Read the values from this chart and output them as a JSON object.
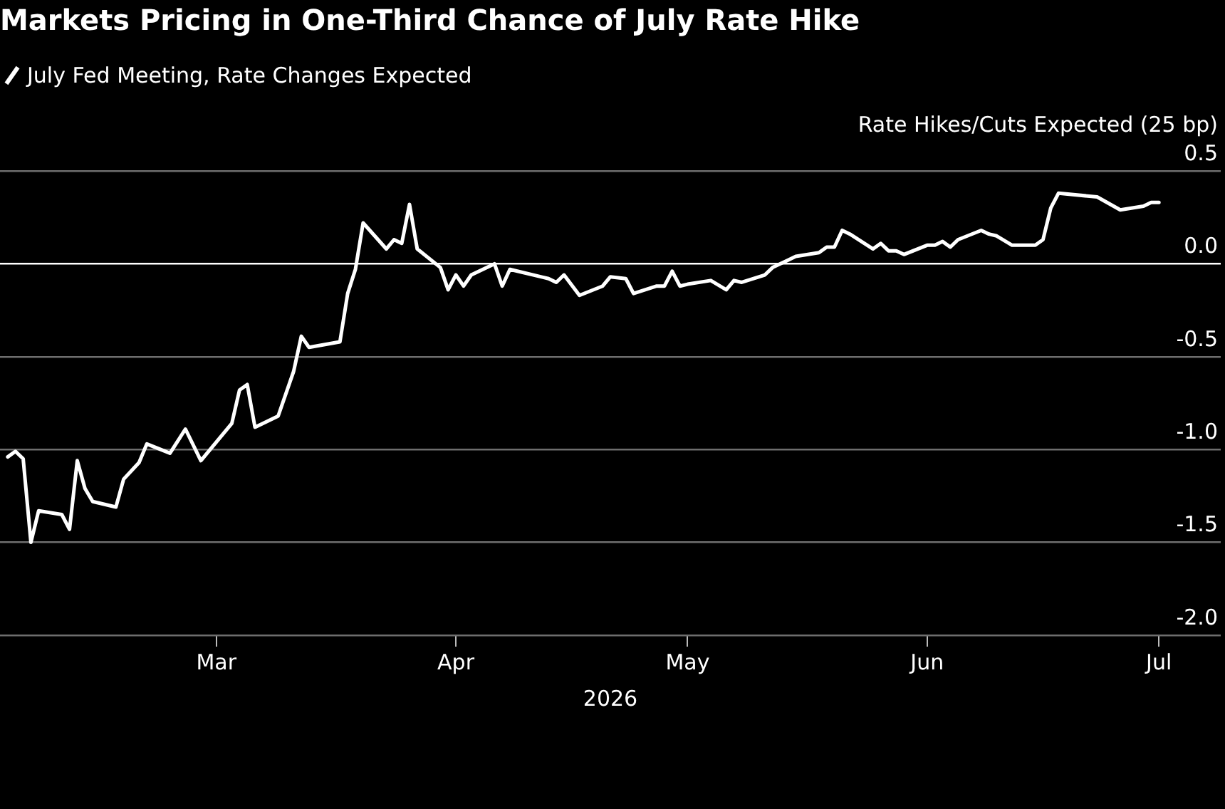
{
  "chart_data": {
    "type": "line",
    "title": "Markets Pricing in One-Third Chance of July Rate Hike",
    "ylabel": "Rate Hikes/Cuts Expected (25 bp)",
    "xlabel": "2026",
    "legend": "top left",
    "grid": "y",
    "marker": "none",
    "line_style": "solid",
    "xlim": [
      "2026-02-01",
      "2026-07-09"
    ],
    "xticks": [
      {
        "value": "2026-03-01",
        "label": "Mar"
      },
      {
        "value": "2026-04-01",
        "label": "Apr"
      },
      {
        "value": "2026-05-01",
        "label": "May"
      },
      {
        "value": "2026-06-01",
        "label": "Jun"
      },
      {
        "value": "2026-07-01",
        "label": "Jul"
      }
    ],
    "ylim": [
      -2,
      0.5
    ],
    "yticks": [
      {
        "value": -2,
        "label": "-2.0"
      },
      {
        "value": -1.5,
        "label": "-1.5"
      },
      {
        "value": -1,
        "label": "-1.0"
      },
      {
        "value": -0.5,
        "label": "-0.5"
      },
      {
        "value": 0,
        "label": "0.0"
      },
      {
        "value": 0.5,
        "label": "0.5"
      }
    ],
    "series": [
      {
        "name": "July Fed Meeting, Rate Changes Expected",
        "color": "#ffffff",
        "x": [
          "2026-02-02",
          "2026-02-03",
          "2026-02-04",
          "2026-02-05",
          "2026-02-06",
          "2026-02-09",
          "2026-02-10",
          "2026-02-11",
          "2026-02-12",
          "2026-02-13",
          "2026-02-16",
          "2026-02-17",
          "2026-02-19",
          "2026-02-20",
          "2026-02-23",
          "2026-02-25",
          "2026-02-27",
          "2026-03-03",
          "2026-03-04",
          "2026-03-05",
          "2026-03-06",
          "2026-03-09",
          "2026-03-11",
          "2026-03-12",
          "2026-03-13",
          "2026-03-17",
          "2026-03-18",
          "2026-03-19",
          "2026-03-20",
          "2026-03-23",
          "2026-03-24",
          "2026-03-25",
          "2026-03-26",
          "2026-03-27",
          "2026-03-30",
          "2026-03-31",
          "2026-04-01",
          "2026-04-02",
          "2026-04-03",
          "2026-04-06",
          "2026-04-07",
          "2026-04-08",
          "2026-04-13",
          "2026-04-14",
          "2026-04-15",
          "2026-04-17",
          "2026-04-20",
          "2026-04-21",
          "2026-04-23",
          "2026-04-24",
          "2026-04-27",
          "2026-04-28",
          "2026-04-29",
          "2026-04-30",
          "2026-05-01",
          "2026-05-04",
          "2026-05-06",
          "2026-05-07",
          "2026-05-08",
          "2026-05-11",
          "2026-05-12",
          "2026-05-14",
          "2026-05-15",
          "2026-05-18",
          "2026-05-19",
          "2026-05-20",
          "2026-05-21",
          "2026-05-22",
          "2026-05-25",
          "2026-05-26",
          "2026-05-27",
          "2026-05-28",
          "2026-05-29",
          "2026-06-01",
          "2026-06-02",
          "2026-06-03",
          "2026-06-04",
          "2026-06-05",
          "2026-06-08",
          "2026-06-09",
          "2026-06-10",
          "2026-06-12",
          "2026-06-15",
          "2026-06-16",
          "2026-06-17",
          "2026-06-18",
          "2026-06-23",
          "2026-06-26",
          "2026-06-29",
          "2026-06-30",
          "2026-07-01"
        ],
        "values": [
          -1.04,
          -1.01,
          -1.05,
          -1.5,
          -1.33,
          -1.35,
          -1.43,
          -1.06,
          -1.21,
          -1.28,
          -1.31,
          -1.16,
          -1.07,
          -0.97,
          -1.02,
          -0.89,
          -1.06,
          -0.86,
          -0.68,
          -0.65,
          -0.88,
          -0.82,
          -0.58,
          -0.39,
          -0.45,
          -0.42,
          -0.16,
          -0.03,
          0.22,
          0.08,
          0.13,
          0.11,
          0.32,
          0.08,
          -0.02,
          -0.14,
          -0.06,
          -0.12,
          -0.06,
          0.0,
          -0.12,
          -0.03,
          -0.08,
          -0.1,
          -0.06,
          -0.17,
          -0.12,
          -0.07,
          -0.08,
          -0.16,
          -0.12,
          -0.12,
          -0.04,
          -0.12,
          -0.11,
          -0.09,
          -0.14,
          -0.09,
          -0.1,
          -0.06,
          -0.02,
          0.02,
          0.04,
          0.06,
          0.09,
          0.09,
          0.18,
          0.16,
          0.08,
          0.11,
          0.07,
          0.07,
          0.05,
          0.1,
          0.1,
          0.12,
          0.09,
          0.13,
          0.18,
          0.16,
          0.15,
          0.1,
          0.1,
          0.13,
          0.3,
          0.38,
          0.36,
          0.29,
          0.31,
          0.33,
          0.33
        ]
      }
    ]
  }
}
